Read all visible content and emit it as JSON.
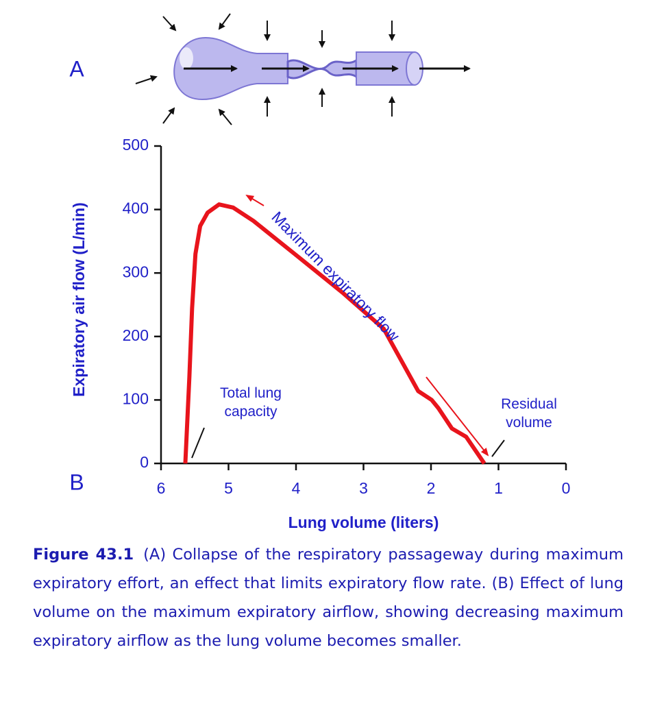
{
  "panel_labels": [
    "A",
    "B"
  ],
  "chart_data": {
    "type": "line",
    "x_label": "Lung volume (liters)",
    "y_label": "Expiratory air flow (L/min)",
    "xlim": [
      6,
      0
    ],
    "xticks": [
      6,
      5,
      4,
      3,
      2,
      1,
      0
    ],
    "ylim": [
      0,
      500
    ],
    "yticks": [
      0,
      100,
      200,
      300,
      400,
      500
    ],
    "series": [
      {
        "color": "#e8141c",
        "x": [
          5.64,
          5.58,
          5.54,
          5.49,
          5.42,
          5.31,
          5.14,
          4.93,
          4.63,
          4.02,
          3.31,
          2.7,
          2.19,
          1.99,
          1.89,
          1.69,
          1.48,
          1.21
        ],
        "values": [
          0,
          136,
          244,
          330,
          374,
          395,
          408,
          403,
          382,
          330,
          269,
          212,
          114,
          100,
          87,
          55,
          42,
          0
        ]
      }
    ],
    "annotations": [
      {
        "lines": [
          "Total lung",
          "capacity"
        ]
      },
      {
        "lines": [
          "Residual",
          "volume"
        ]
      },
      {
        "lines": [
          "Maximum expiratory flow"
        ]
      }
    ]
  },
  "caption": {
    "label": "Figure 43.1",
    "text": "(A) Collapse of the respiratory passageway during maximum expiratory effort, an effect that limits expiratory flow rate. (B) Effect of lung volume on the maximum expiratory airflow, showing decreasing maximum expiratory airflow as the lung volume becomes smaller."
  }
}
